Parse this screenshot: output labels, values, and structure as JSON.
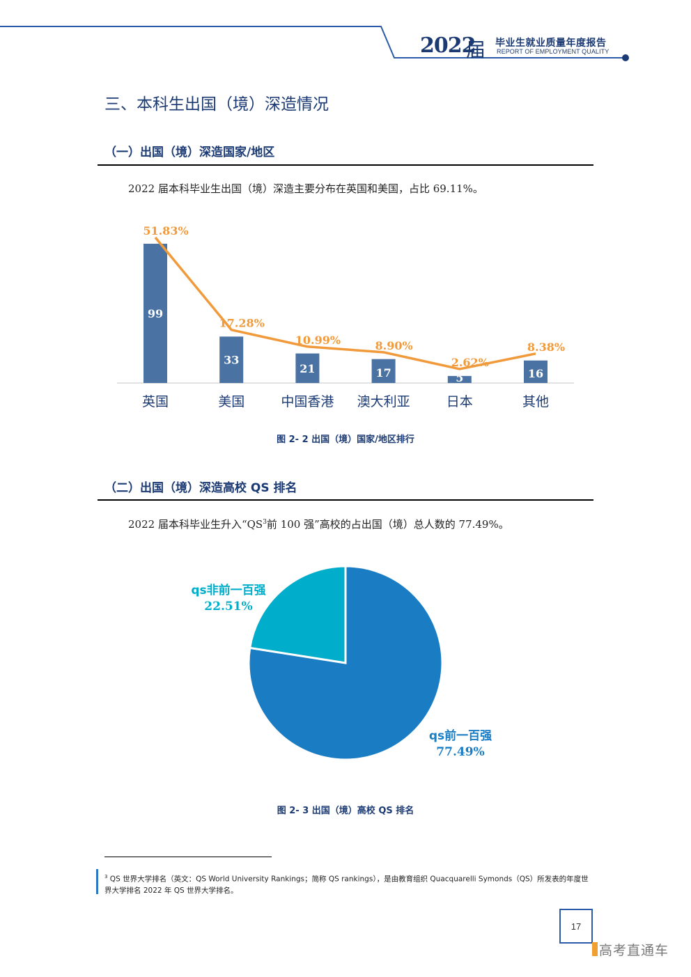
{
  "header": {
    "year": "2022",
    "jie": "届",
    "title_cn": "毕业生就业质量年度报告",
    "title_en": "REPORT OF EMPLOYMENT QUALITY",
    "color": "#1b3a73"
  },
  "section_title": "三、本科生出国（境）深造情况",
  "part1": {
    "heading": "（一）出国（境）深造国家/地区",
    "paragraph": "2022 届本科毕业生出国（境）深造主要分布在英国和美国，占比 69.11%。",
    "caption": "图 2- 2 出国（境）国家/地区排行"
  },
  "part2": {
    "heading": "（二）出国（境）深造高校 QS 排名",
    "paragraph_before": "2022 届本科毕业生升入“QS",
    "paragraph_sup": "3",
    "paragraph_after": "前 100 强”高校的占出国（境）总人数的 77.49%。",
    "caption": "图 2- 3 出国（境）高校 QS 排名"
  },
  "chart_data": [
    {
      "type": "bar",
      "categories": [
        "英国",
        "美国",
        "中国香港",
        "澳大利亚",
        "日本",
        "其他"
      ],
      "series": [
        {
          "values": [
            99,
            33,
            21,
            17,
            5,
            16
          ],
          "color": "#4a72a3"
        },
        {
          "type": "line",
          "values": [
            51.83,
            17.28,
            10.99,
            8.9,
            2.62,
            8.38
          ],
          "value_labels": [
            "51.83%",
            "17.28%",
            "10.99%",
            "8.90%",
            "2.62%",
            "8.38%"
          ],
          "color": "#f19a3b"
        }
      ],
      "title": "",
      "xlabel": "",
      "ylabel": "",
      "grid": false
    },
    {
      "type": "pie",
      "slices": [
        {
          "label": "qs前一百强",
          "value": 77.49,
          "value_label": "77.49%",
          "color": "#1a7dc4"
        },
        {
          "label": "qs非前一百强",
          "value": 22.51,
          "value_label": "22.51%",
          "color": "#00aecb"
        }
      ]
    }
  ],
  "footnote": {
    "sup": "3",
    "text": " QS 世界大学排名（英文：QS World University Rankings；简称 QS rankings），是由教育组织 Quacquarelli Symonds（QS）所发表的年度世界大学排名 2022 年 QS 世界大学排名。"
  },
  "page_number": "17",
  "watermark": "高考直通车"
}
